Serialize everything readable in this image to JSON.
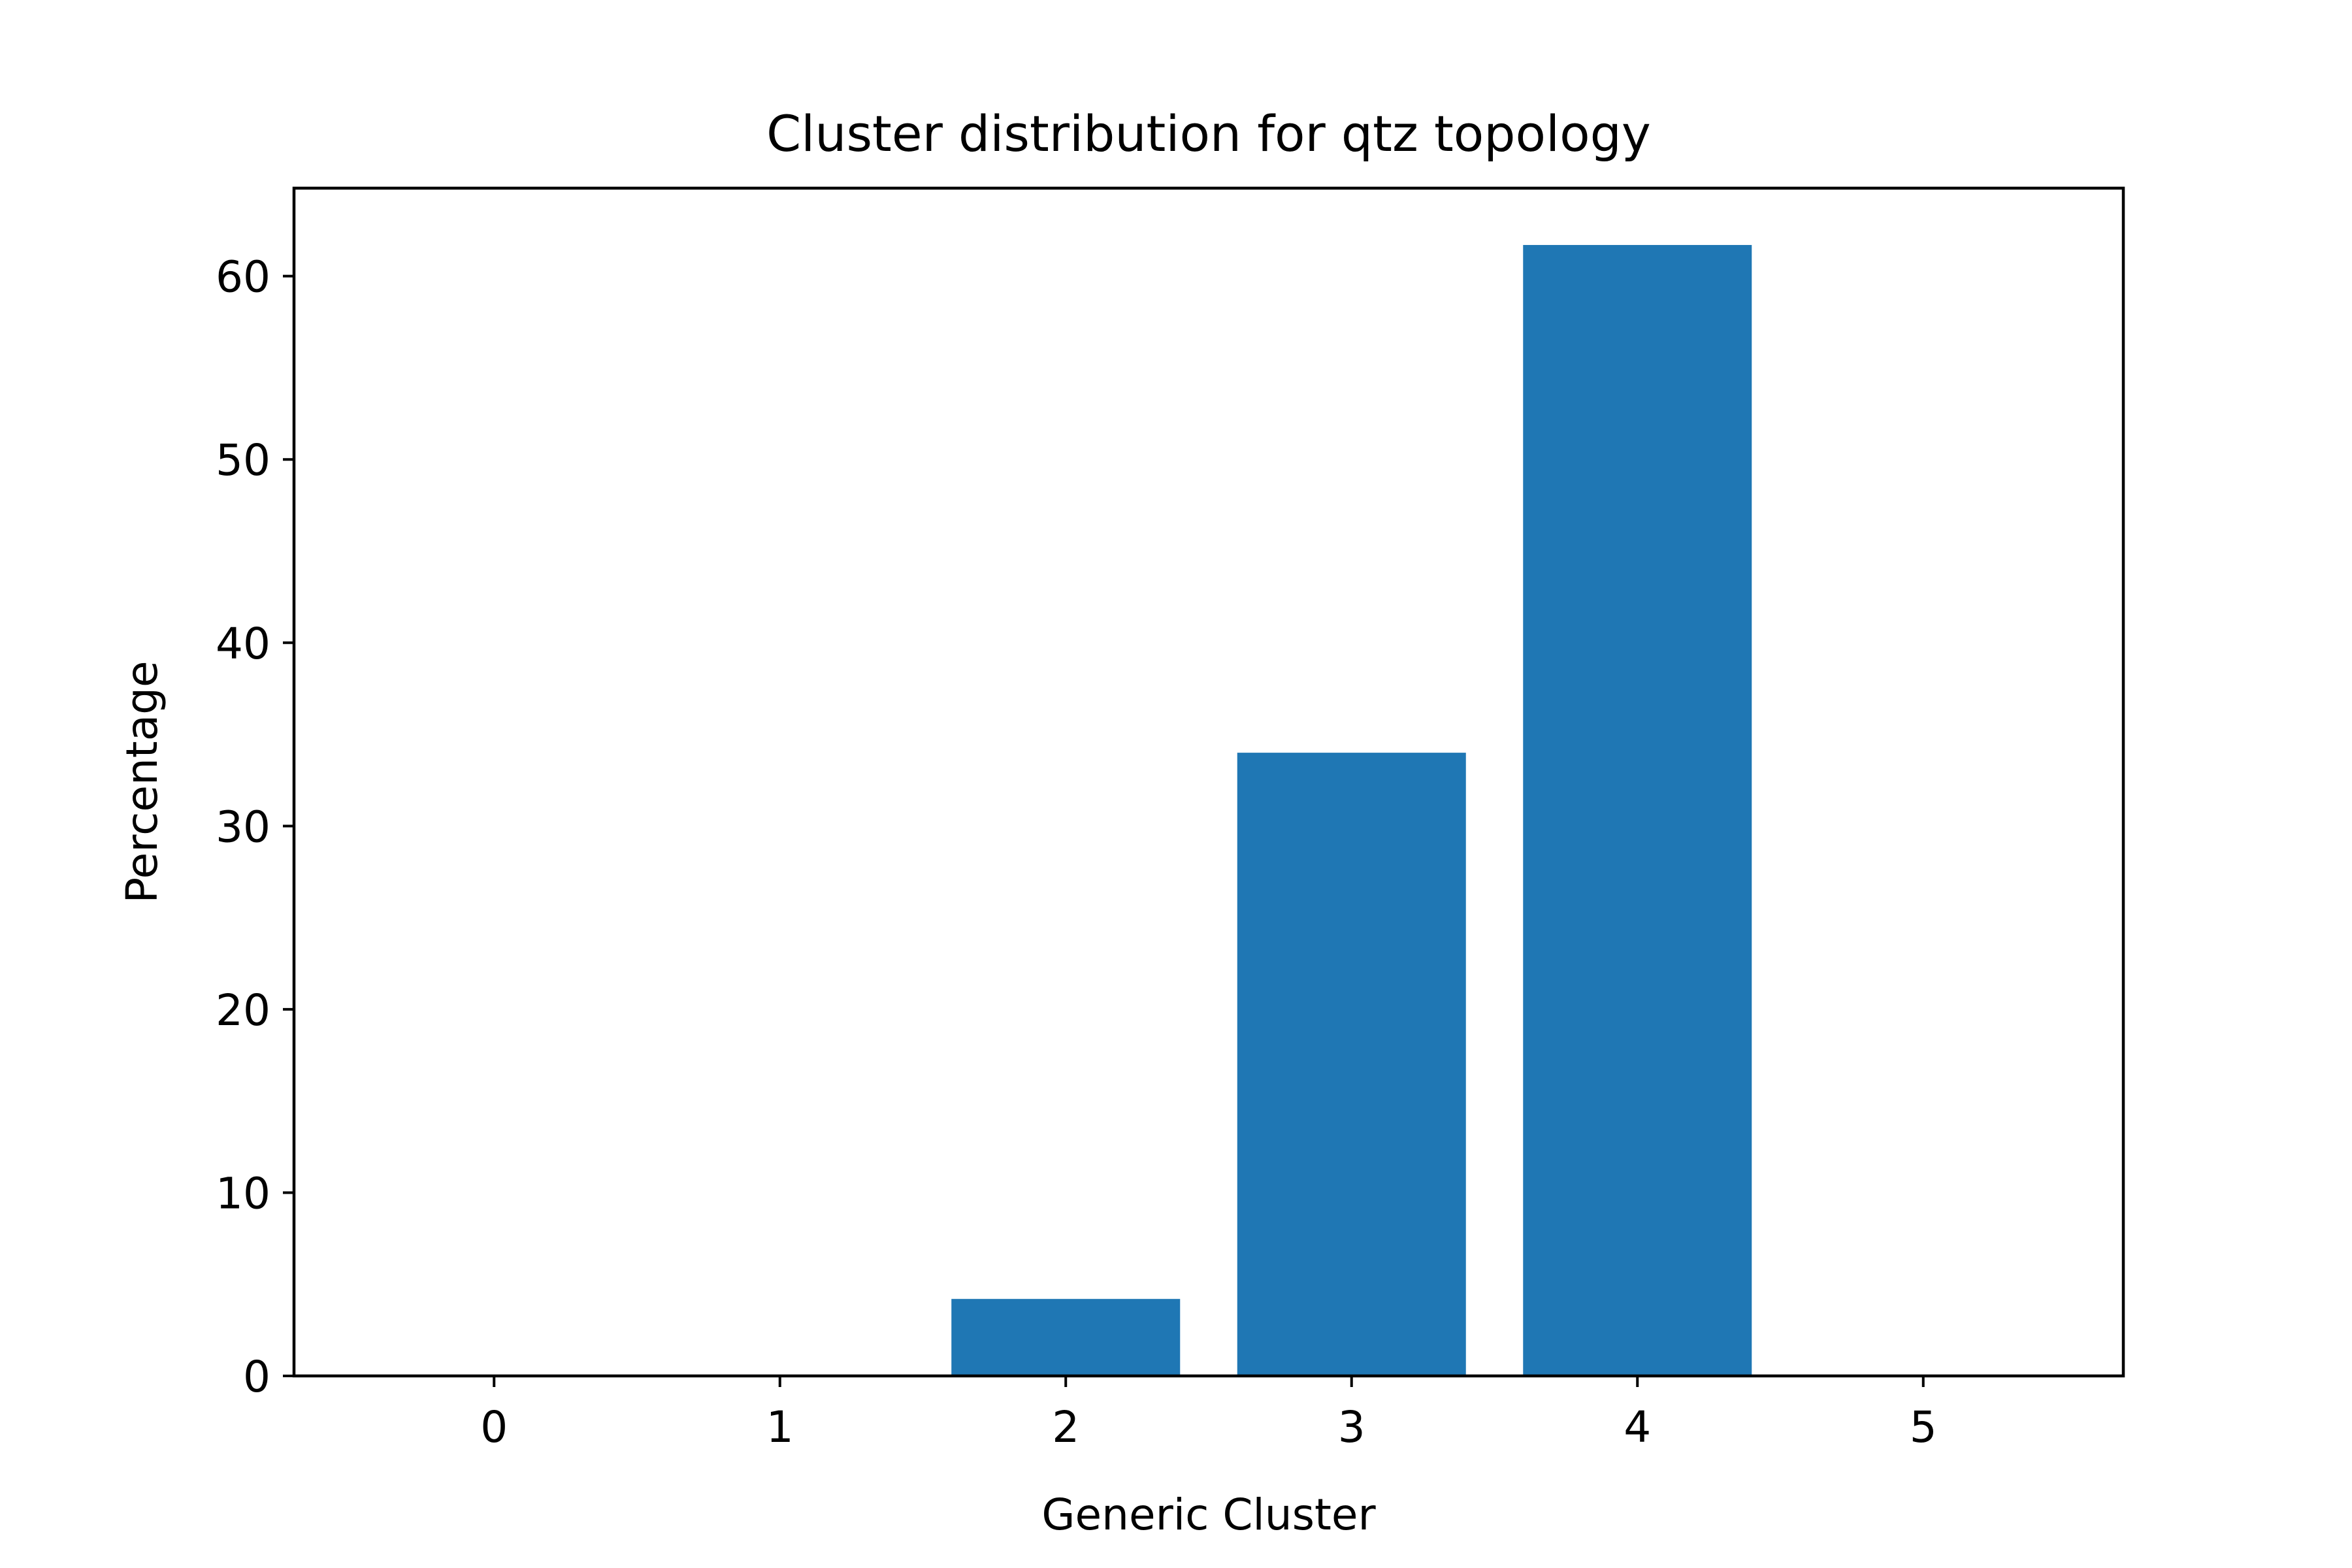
{
  "chart_data": {
    "type": "bar",
    "title": "Cluster distribution for qtz topology",
    "xlabel": "Generic Cluster",
    "ylabel": "Percentage",
    "categories": [
      "0",
      "1",
      "2",
      "3",
      "4",
      "5"
    ],
    "values": [
      0,
      0,
      4.2,
      34.0,
      61.7,
      0
    ],
    "ylim": [
      0,
      64.8
    ],
    "xlim": [
      -0.7,
      5.7
    ],
    "yticks": [
      0,
      10,
      20,
      30,
      40,
      50,
      60
    ],
    "ytick_labels": [
      "0",
      "10",
      "20",
      "30",
      "40",
      "50",
      "60"
    ],
    "xticks": [
      0,
      1,
      2,
      3,
      4,
      5
    ],
    "xtick_labels": [
      "0",
      "1",
      "2",
      "3",
      "4",
      "5"
    ],
    "bar_color": "#1f77b4",
    "bar_width": 0.8,
    "grid": false,
    "legend": "none"
  }
}
